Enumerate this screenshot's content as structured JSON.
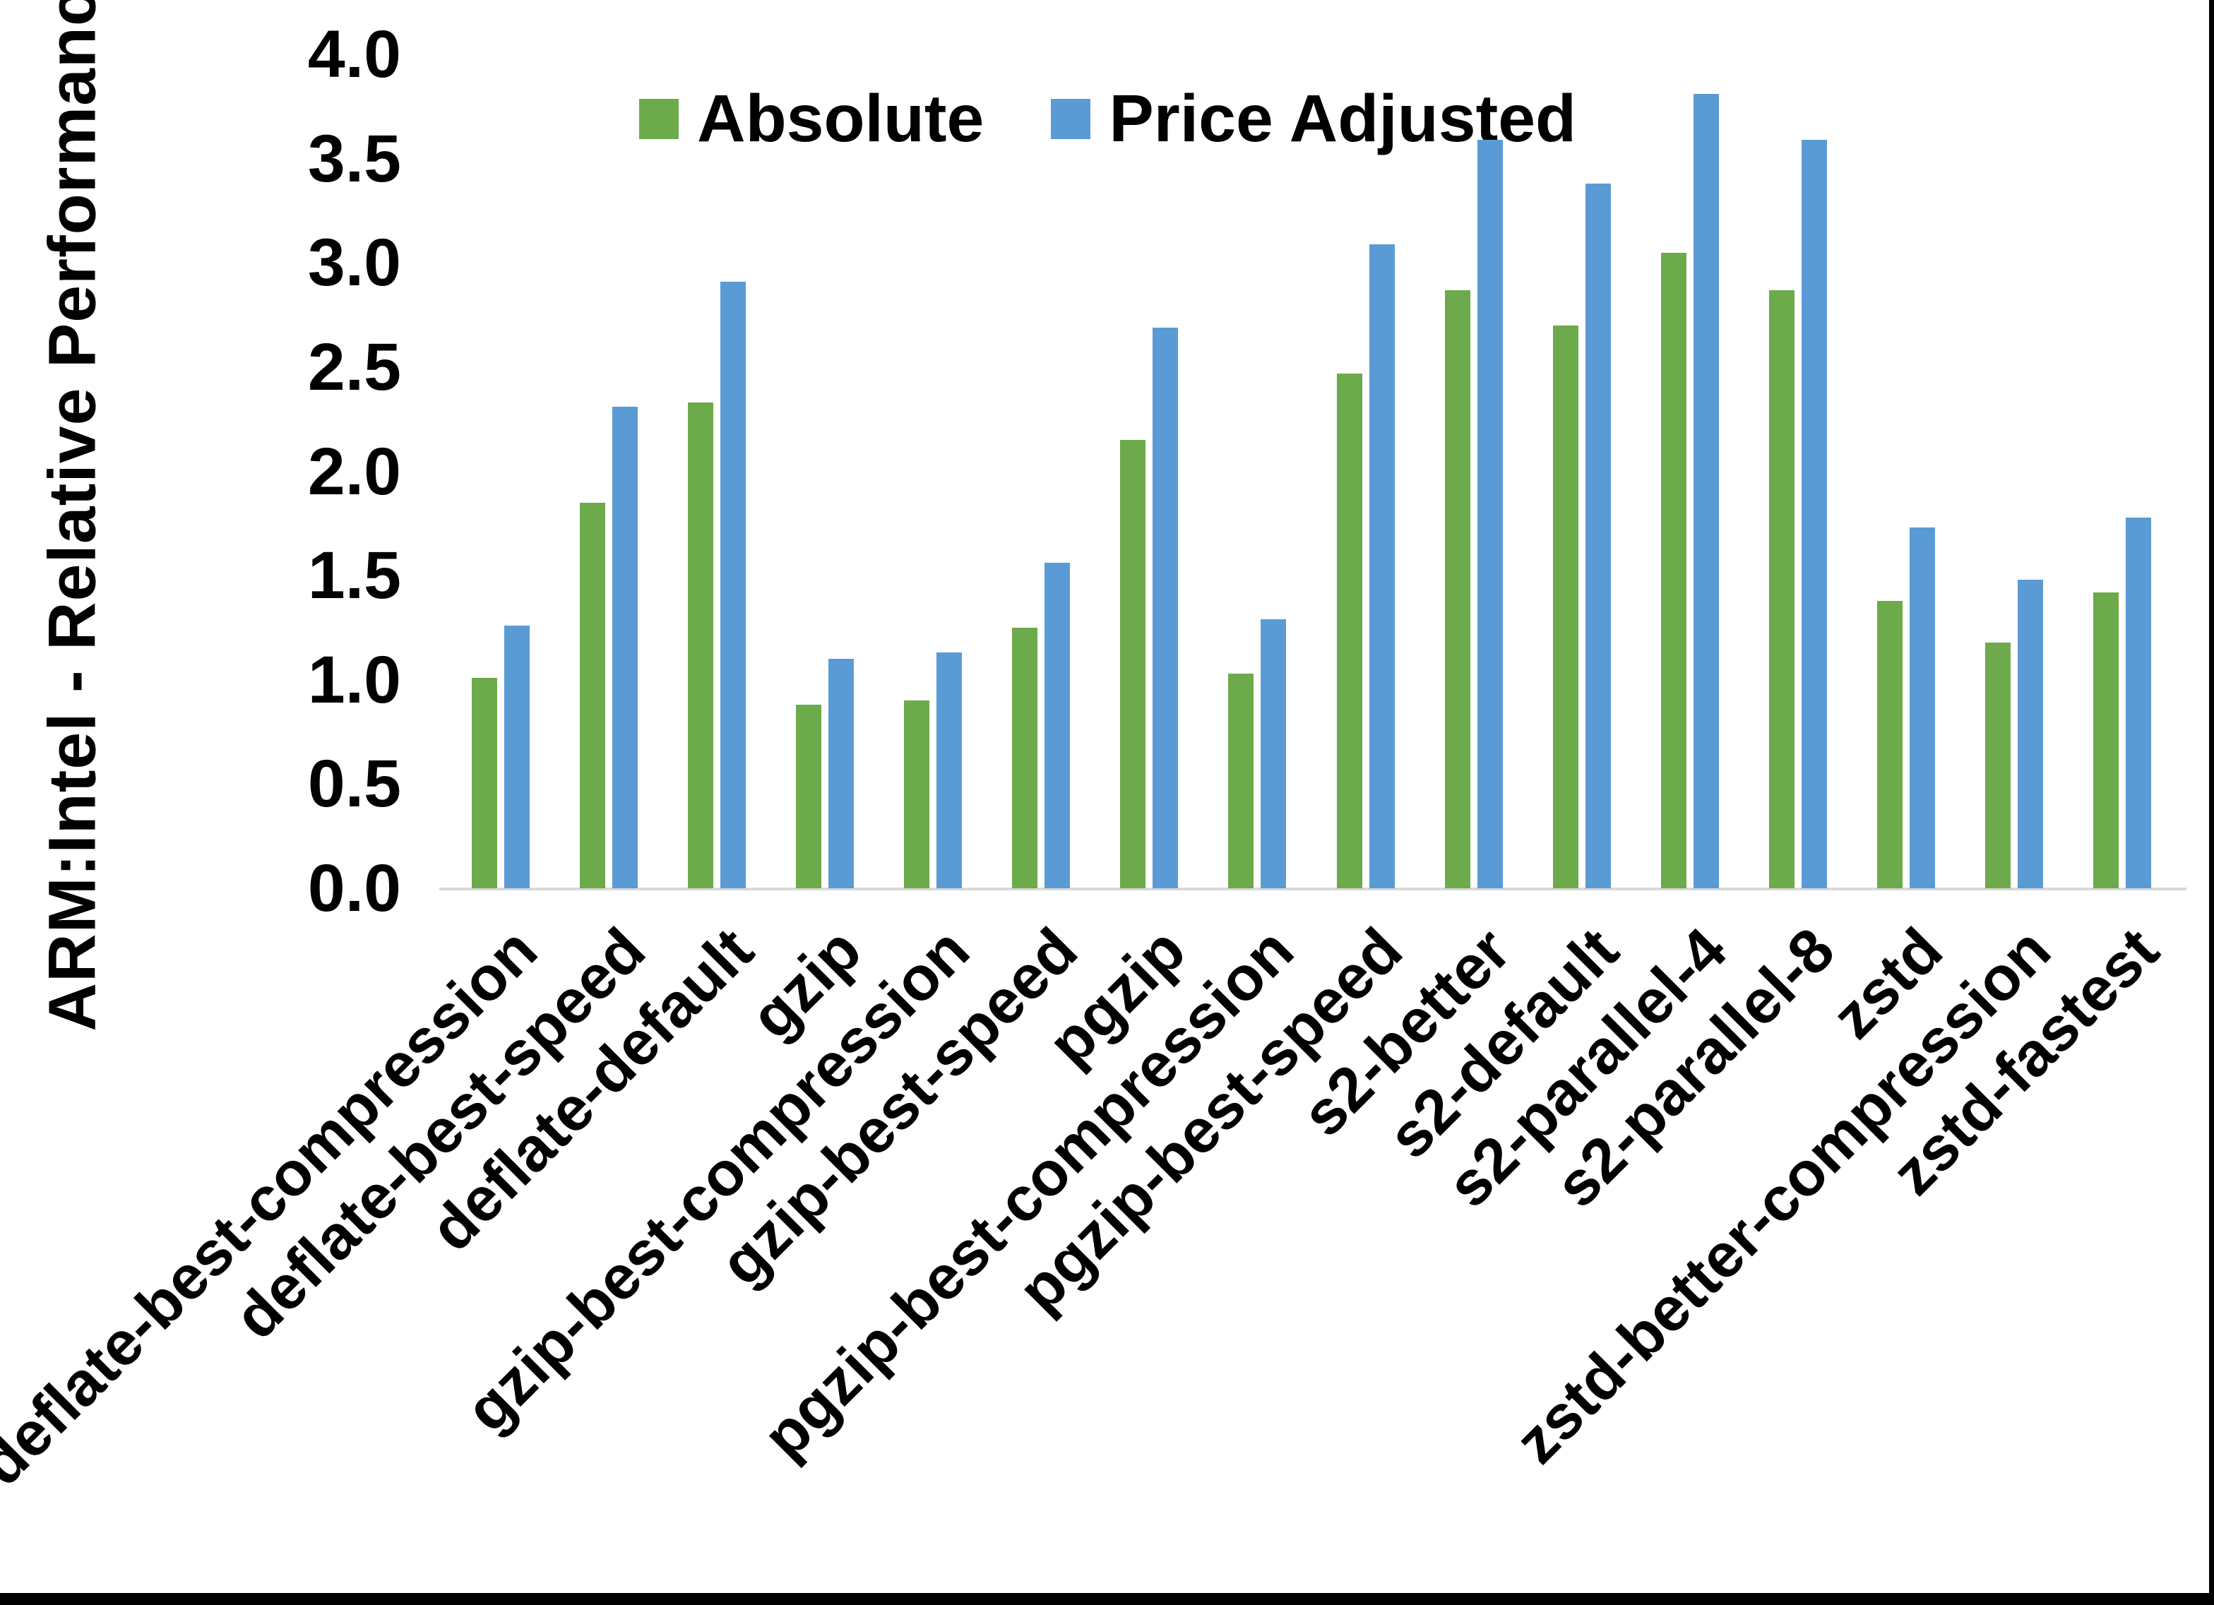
{
  "page": {
    "background": "#ffffff",
    "frame_color": "#000000"
  },
  "chart_data": {
    "type": "bar",
    "title": "",
    "xlabel": "",
    "ylabel": "ARM:Intel - Relative Performance",
    "ylim": [
      0.0,
      4.0
    ],
    "ytick_step": 0.5,
    "ytick_labels": [
      "0.0",
      "0.5",
      "1.0",
      "1.5",
      "2.0",
      "2.5",
      "3.0",
      "3.5",
      "4.0"
    ],
    "grid": false,
    "legend_position": "top-center",
    "axis_line_color": "#d9d9d9",
    "categories": [
      "deflate-best-compression",
      "deflate-best-speed",
      "deflate-default",
      "gzip",
      "gzip-best-compression",
      "gzip-best-speed",
      "pgzip",
      "pgzip-best-compression",
      "pgzip-best-speed",
      "s2-better",
      "s2-default",
      "s2-parallel-4",
      "s2-parallel-8",
      "zstd",
      "zstd-better-compression",
      "zstd-fastest"
    ],
    "series": [
      {
        "name": "Absolute",
        "color": "#6daa4b",
        "values": [
          1.01,
          1.85,
          2.33,
          0.88,
          0.9,
          1.25,
          2.15,
          1.03,
          2.47,
          2.87,
          2.7,
          3.05,
          2.87,
          1.38,
          1.18,
          1.42
        ]
      },
      {
        "name": "Price Adjusted",
        "color": "#5b9bd5",
        "values": [
          1.26,
          2.31,
          2.91,
          1.1,
          1.13,
          1.56,
          2.69,
          1.29,
          3.09,
          3.59,
          3.38,
          3.81,
          3.59,
          1.73,
          1.48,
          1.78
        ]
      }
    ]
  }
}
